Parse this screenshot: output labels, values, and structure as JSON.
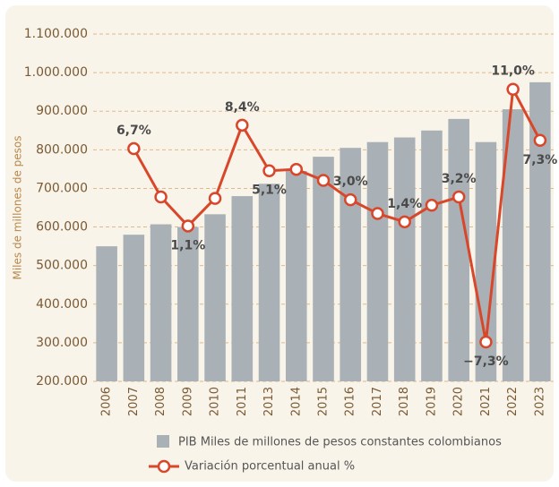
{
  "chart_data": {
    "type": "bar_line",
    "y_axis_label": "Miles de millones de pesos",
    "categories": [
      "2006",
      "2007",
      "2008",
      "2009",
      "2010",
      "2011",
      "2013",
      "2014",
      "2015",
      "2016",
      "2017",
      "2018",
      "2019",
      "2020",
      "2021",
      "2022",
      "2023"
    ],
    "series": [
      {
        "name": "PIB Miles de millones de pesos constantes colombianos",
        "type": "bar",
        "color": "#a9b1b7",
        "values": [
          550000,
          580000,
          607000,
          600000,
          633000,
          680000,
          712000,
          745000,
          782000,
          805000,
          820000,
          832000,
          850000,
          880000,
          820000,
          905000,
          975000
        ]
      },
      {
        "name": "Variación porcentual anual %",
        "type": "line",
        "axis": "y2",
        "color": "#d9472b",
        "values": [
          null,
          6.7,
          3.2,
          1.1,
          3.1,
          8.4,
          5.1,
          5.2,
          4.4,
          3.0,
          2.0,
          1.4,
          2.6,
          3.2,
          -7.3,
          11.0,
          7.3
        ],
        "value_labels": [
          null,
          "6,7%",
          null,
          "1,1%",
          null,
          "8,4%",
          "5,1%",
          null,
          null,
          "3,0%",
          null,
          "1,4%",
          null,
          "3,2%",
          "−7,3%",
          "11,0%",
          "7,3%"
        ]
      }
    ],
    "ylim": [
      200000,
      1100000
    ],
    "yticks": [
      {
        "value": 200000,
        "label": "200.000"
      },
      {
        "value": 300000,
        "label": "300.000"
      },
      {
        "value": 400000,
        "label": "400.000"
      },
      {
        "value": 500000,
        "label": "500.000"
      },
      {
        "value": 600000,
        "label": "600.000"
      },
      {
        "value": 700000,
        "label": "700.000"
      },
      {
        "value": 800000,
        "label": "800.000"
      },
      {
        "value": 900000,
        "label": "900.000"
      },
      {
        "value": 1000000,
        "label": "1.000.000"
      },
      {
        "value": 1100000,
        "label": "1.100.000"
      }
    ],
    "y2lim": [
      -10.15,
      15
    ],
    "grid": true
  }
}
